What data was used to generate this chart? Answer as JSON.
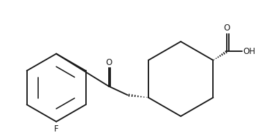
{
  "background": "#ffffff",
  "line_color": "#1a1a1a",
  "line_width": 1.4,
  "font_size": 8.5,
  "figsize": [
    3.72,
    1.98
  ],
  "dpi": 100,
  "xlim": [
    0,
    10
  ],
  "ylim": [
    0,
    5.3
  ]
}
